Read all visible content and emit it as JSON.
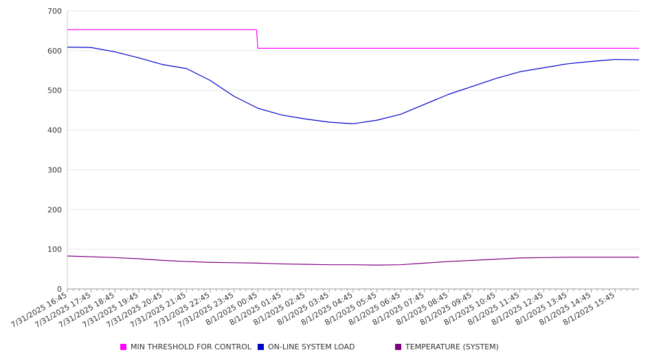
{
  "chart_data": {
    "type": "line",
    "ylim": [
      0,
      700
    ],
    "y_ticks": [
      0,
      100,
      200,
      300,
      400,
      500,
      600,
      700
    ],
    "grid": true,
    "legend_position": "bottom",
    "x_tick_labels": [
      "7/31/2025 16:45",
      "7/31/2025 17:45",
      "7/31/2025 18:45",
      "7/31/2025 19:45",
      "7/31/2025 20:45",
      "7/31/2025 21:45",
      "7/31/2025 22:45",
      "7/31/2025 23:45",
      "8/1/2025 00:45",
      "8/1/2025 01:45",
      "8/1/2025 02:45",
      "8/1/2025 03:45",
      "8/1/2025 04:45",
      "8/1/2025 05:45",
      "8/1/2025 06:45",
      "8/1/2025 07:45",
      "8/1/2025 08:45",
      "8/1/2025 09:45",
      "8/1/2025 10:45",
      "8/1/2025 11:45",
      "8/1/2025 12:45",
      "8/1/2025 13:45",
      "8/1/2025 14:45",
      "8/1/2025 15:45"
    ],
    "x": [
      "7/31/2025 16:45",
      "7/31/2025 17:45",
      "7/31/2025 18:45",
      "7/31/2025 19:45",
      "7/31/2025 20:45",
      "7/31/2025 21:45",
      "7/31/2025 22:45",
      "7/31/2025 23:45",
      "8/1/2025 00:45",
      "8/1/2025 01:45",
      "8/1/2025 02:45",
      "8/1/2025 03:45",
      "8/1/2025 04:45",
      "8/1/2025 05:45",
      "8/1/2025 06:45",
      "8/1/2025 07:45",
      "8/1/2025 08:45",
      "8/1/2025 09:45",
      "8/1/2025 10:45",
      "8/1/2025 11:45",
      "8/1/2025 12:45",
      "8/1/2025 13:45",
      "8/1/2025 14:45",
      "8/1/2025 15:45",
      "8/1/2025 16:30"
    ],
    "series": [
      {
        "name": "MIN THRESHOLD FOR CONTROL",
        "color": "#ff00ff",
        "values": [
          653,
          653,
          653,
          653,
          653,
          653,
          653,
          653,
          606,
          606,
          606,
          606,
          606,
          606,
          606,
          606,
          606,
          606,
          606,
          606,
          606,
          606,
          606,
          606,
          606
        ]
      },
      {
        "name": "ON-LINE SYSTEM LOAD",
        "color": "#0000cc",
        "values": [
          609,
          608,
          597,
          582,
          565,
          555,
          525,
          485,
          455,
          438,
          428,
          420,
          416,
          425,
          440,
          465,
          490,
          510,
          530,
          547,
          557,
          567,
          573,
          578,
          577
        ]
      },
      {
        "name": "TEMPERATURE (SYSTEM)",
        "color": "#800080",
        "values": [
          83,
          81,
          79,
          76,
          72,
          69,
          67,
          66,
          65,
          63,
          62,
          61,
          61,
          60,
          61,
          65,
          69,
          72,
          75,
          78,
          79,
          80,
          80,
          80,
          80
        ]
      }
    ]
  }
}
